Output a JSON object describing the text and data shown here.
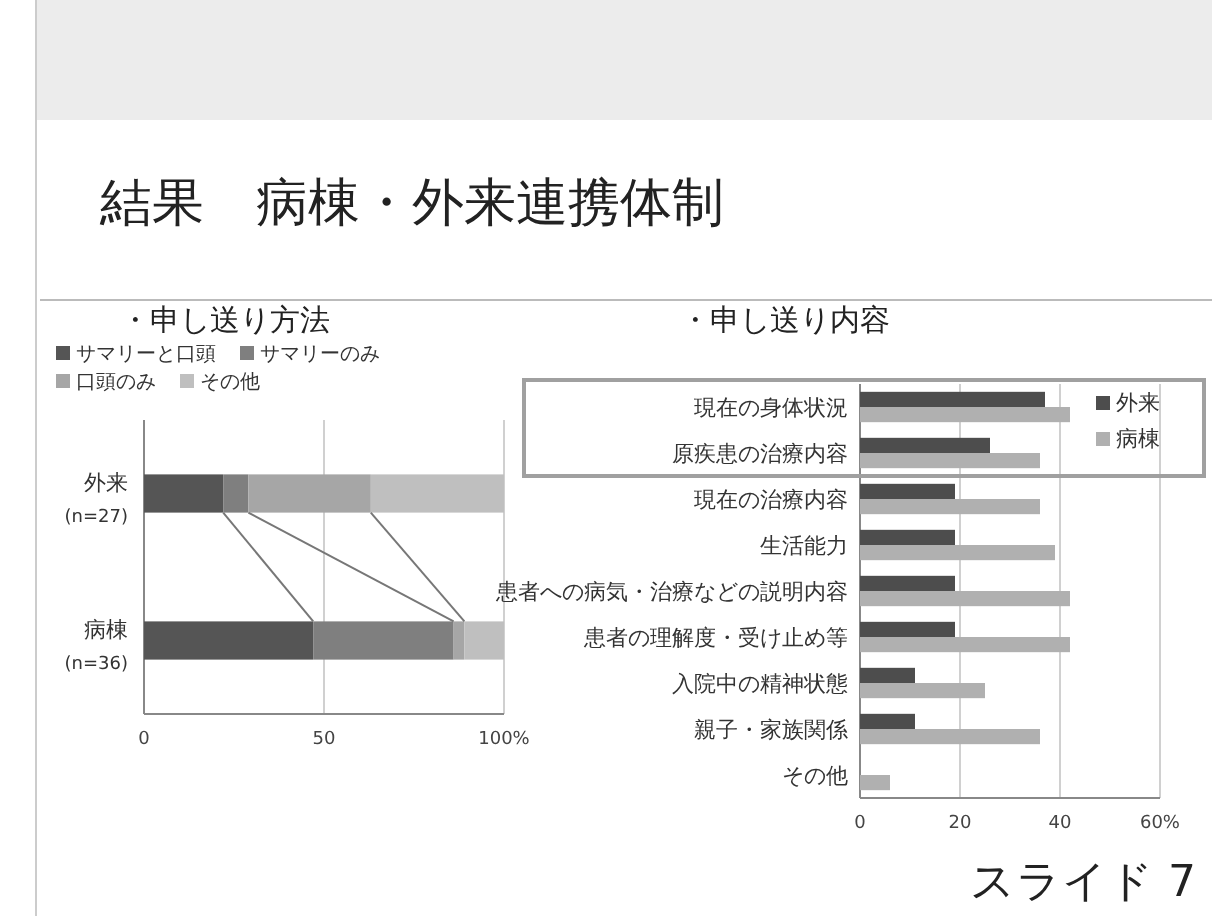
{
  "chart_data": [
    {
      "type": "bar",
      "title": "・申し送り方法",
      "orientation": "horizontal",
      "stacked": true,
      "categories": [
        "外来 (n=27)",
        "病棟 (n=36)"
      ],
      "series": [
        {
          "name": "サマリーと口頭",
          "color": "#555555",
          "values": [
            22,
            47
          ]
        },
        {
          "name": "サマリーのみ",
          "color": "#7f7f7f",
          "values": [
            7,
            39
          ]
        },
        {
          "name": "口頭のみ",
          "color": "#a6a6a6",
          "values": [
            34,
            3
          ]
        },
        {
          "name": "その他",
          "color": "#bfbfbf",
          "values": [
            37,
            11
          ]
        }
      ],
      "xlim": [
        0,
        100
      ],
      "xticks": [
        0,
        50,
        {
          "value": 100,
          "label": "100%"
        }
      ],
      "grid": "x",
      "legend": "top",
      "annotations": [
        "結果　病棟・外来連携体制"
      ]
    },
    {
      "type": "bar",
      "title": "・申し送り内容",
      "orientation": "horizontal",
      "categories": [
        "現在の身体状況",
        "原疾患の治療内容",
        "現在の治療内容",
        "生活能力",
        "患者への病気・治療などの説明内容",
        "患者の理解度・受け止め等",
        "入院中の精神状態",
        "親子・家族関係",
        "その他"
      ],
      "series": [
        {
          "name": "外来",
          "color": "#4d4d4d",
          "values": [
            37,
            26,
            19,
            19,
            19,
            19,
            11,
            11,
            0
          ]
        },
        {
          "name": "病棟",
          "color": "#b0b0b0",
          "values": [
            42,
            36,
            36,
            39,
            42,
            42,
            25,
            36,
            6
          ]
        }
      ],
      "xlim": [
        0,
        60
      ],
      "xticks": [
        0,
        20,
        40,
        {
          "value": 60,
          "label": "60%"
        }
      ],
      "grid": "x",
      "legend": "top right",
      "annotations": [
        "スライド 7"
      ]
    }
  ]
}
